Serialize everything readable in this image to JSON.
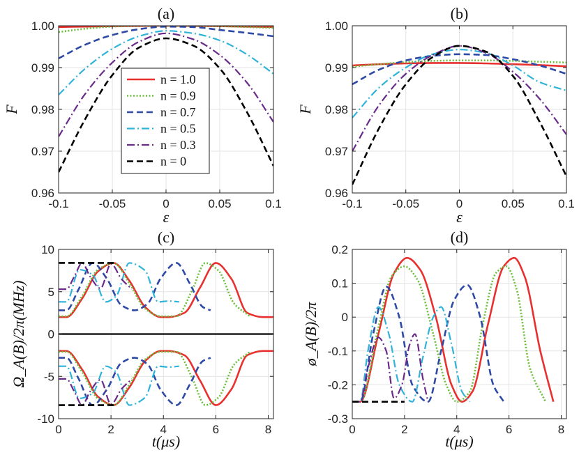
{
  "chart_data": [
    {
      "panel": "(a)",
      "type": "line",
      "xlabel": "ε",
      "ylabel": "F",
      "xlim": [
        -0.1,
        0.1
      ],
      "ylim": [
        0.96,
        1.0
      ],
      "xticks": [
        -0.1,
        -0.05,
        0,
        0.05,
        0.1
      ],
      "xtick_labels": [
        "-0.1",
        "-0.05",
        "0",
        "0.05",
        "0.1"
      ],
      "yticks": [
        0.96,
        0.97,
        0.98,
        0.99,
        1.0
      ],
      "ytick_labels": [
        "0.96",
        "0.97",
        "0.98",
        "0.99",
        "1.00"
      ],
      "grid": true,
      "legend": "center-left",
      "x": [
        -0.1,
        -0.075,
        -0.05,
        -0.025,
        0,
        0.025,
        0.05,
        0.075,
        0.1
      ],
      "series": [
        {
          "name": "n = 1.0",
          "color": "#e8302f",
          "style": "solid",
          "values": [
            0.9997,
            0.9998,
            0.9999,
            0.99995,
            1.0,
            0.99995,
            0.9999,
            0.9998,
            0.9997
          ]
        },
        {
          "name": "n = 0.9",
          "color": "#6abf3a",
          "style": "dotted",
          "values": [
            0.9985,
            0.9993,
            0.9998,
            1.0,
            1.0,
            1.0,
            0.9999,
            0.9997,
            0.9995
          ]
        },
        {
          "name": "n = 0.7",
          "color": "#2e4aa6",
          "style": "dashed",
          "values": [
            0.9922,
            0.9955,
            0.9978,
            0.9992,
            0.9998,
            0.9997,
            0.999,
            0.9983,
            0.9975
          ]
        },
        {
          "name": "n = 0.5",
          "color": "#2fb3d9",
          "style": "dashdot",
          "values": [
            0.9835,
            0.9898,
            0.9945,
            0.9975,
            0.9988,
            0.9982,
            0.9965,
            0.9932,
            0.9885
          ]
        },
        {
          "name": "n = 0.3",
          "color": "#6a2a8a",
          "style": "dashdot",
          "values": [
            0.9735,
            0.9838,
            0.9912,
            0.9962,
            0.9982,
            0.9968,
            0.993,
            0.9865,
            0.977
          ]
        },
        {
          "name": "n = 0",
          "color": "#000000",
          "style": "dashed",
          "values": [
            0.965,
            0.9778,
            0.9882,
            0.9948,
            0.997,
            0.9953,
            0.9898,
            0.9795,
            0.9665
          ]
        }
      ]
    },
    {
      "panel": "(b)",
      "type": "line",
      "xlabel": "ε",
      "ylabel": "F",
      "xlim": [
        -0.1,
        0.1
      ],
      "ylim": [
        0.96,
        1.0
      ],
      "xticks": [
        -0.1,
        -0.05,
        0,
        0.05,
        0.1
      ],
      "xtick_labels": [
        "-0.1",
        "-0.05",
        "0",
        "0.05",
        "0.1"
      ],
      "yticks": [
        0.96,
        0.97,
        0.98,
        0.99,
        1.0
      ],
      "ytick_labels": [
        "0.96",
        "0.97",
        "0.98",
        "0.99",
        "1.00"
      ],
      "grid": true,
      "x": [
        -0.1,
        -0.075,
        -0.05,
        -0.025,
        0,
        0.025,
        0.05,
        0.075,
        0.1
      ],
      "series": [
        {
          "name": "n = 1.0",
          "color": "#e8302f",
          "style": "solid",
          "values": [
            0.9905,
            0.9908,
            0.991,
            0.9911,
            0.9911,
            0.991,
            0.9908,
            0.9906,
            0.9903
          ]
        },
        {
          "name": "n = 0.9",
          "color": "#6abf3a",
          "style": "dotted",
          "values": [
            0.9902,
            0.9908,
            0.9913,
            0.9916,
            0.9917,
            0.9917,
            0.9916,
            0.9914,
            0.9912
          ]
        },
        {
          "name": "n = 0.7",
          "color": "#2e4aa6",
          "style": "dashed",
          "values": [
            0.986,
            0.9895,
            0.9917,
            0.9928,
            0.9932,
            0.993,
            0.992,
            0.9905,
            0.9885
          ]
        },
        {
          "name": "n = 0.5",
          "color": "#2fb3d9",
          "style": "dashdot",
          "values": [
            0.978,
            0.9852,
            0.99,
            0.9932,
            0.9943,
            0.9935,
            0.9905,
            0.9865,
            0.9845
          ]
        },
        {
          "name": "n = 0.3",
          "color": "#6a2a8a",
          "style": "dashdot",
          "values": [
            0.97,
            0.981,
            0.9885,
            0.993,
            0.9952,
            0.9935,
            0.989,
            0.9825,
            0.974
          ]
        },
        {
          "name": "n = 0",
          "color": "#000000",
          "style": "dashed",
          "values": [
            0.962,
            0.9755,
            0.986,
            0.9925,
            0.9952,
            0.9938,
            0.988,
            0.977,
            0.964
          ]
        }
      ]
    },
    {
      "panel": "(c)",
      "type": "line",
      "xlabel": "t(μs)",
      "ylabel": "Ω_A(B)/2π(MHz)",
      "xlim": [
        0,
        8.2
      ],
      "ylim": [
        -10,
        10
      ],
      "xticks": [
        0,
        2,
        4,
        6,
        8
      ],
      "xtick_labels": [
        "0",
        "2",
        "4",
        "6",
        "8"
      ],
      "yticks": [
        -10,
        -5,
        0,
        5,
        10
      ],
      "ytick_labels": [
        "-10",
        "-5",
        "0",
        "5",
        "10"
      ],
      "grid": true,
      "zero_line": true,
      "series": [
        {
          "name": "n = 1.0",
          "color": "#e8302f",
          "style": "solid",
          "x": [
            0,
            0.3,
            0.9,
            1.5,
            2.1,
            2.7,
            3.3,
            3.9,
            4.2,
            4.8,
            5.4,
            6.0,
            6.6,
            7.2,
            7.8,
            8.2
          ],
          "values": [
            2.0,
            2.0,
            4.2,
            7.4,
            8.4,
            6.3,
            3.2,
            2.0,
            2.0,
            2.5,
            5.5,
            8.4,
            6.5,
            2.5,
            2.0,
            2.0
          ]
        },
        {
          "name": "n = 0.9",
          "color": "#6abf3a",
          "style": "dotted",
          "x": [
            0,
            0.3,
            0.9,
            1.5,
            2.1,
            2.7,
            3.3,
            3.9,
            4.5,
            5.1,
            5.6,
            6.1,
            6.7,
            7.3
          ],
          "values": [
            2.1,
            2.1,
            4.5,
            7.6,
            8.4,
            6.0,
            3.0,
            2.1,
            2.1,
            5.2,
            8.4,
            7.5,
            3.6,
            2.1
          ]
        },
        {
          "name": "n = 0.7",
          "color": "#2e4aa6",
          "style": "dashed",
          "x": [
            0,
            0.3,
            0.75,
            1.3,
            1.85,
            2.4,
            2.9,
            3.4,
            3.9,
            4.5,
            5.0,
            5.5,
            5.8
          ],
          "values": [
            2.8,
            2.8,
            5.2,
            8.4,
            6.5,
            3.4,
            2.8,
            3.6,
            6.6,
            8.4,
            6.0,
            3.2,
            2.8
          ]
        },
        {
          "name": "n = 0.5",
          "color": "#2fb3d9",
          "style": "dashdot",
          "x": [
            0,
            0.3,
            0.8,
            1.3,
            1.8,
            2.2,
            2.7,
            3.3,
            3.8,
            4.2,
            4.6
          ],
          "values": [
            3.8,
            3.8,
            7.6,
            7.0,
            3.8,
            4.5,
            8.4,
            7.5,
            3.8,
            3.9,
            3.8
          ]
        },
        {
          "name": "n = 0.3",
          "color": "#6a2a8a",
          "style": "dashdot",
          "x": [
            0,
            0.3,
            0.6,
            0.9,
            1.2,
            1.6,
            2.0,
            2.4,
            2.8
          ],
          "values": [
            5.3,
            5.3,
            6.8,
            8.4,
            6.8,
            5.4,
            8.3,
            6.5,
            5.3
          ]
        },
        {
          "name": "n = 0",
          "color": "#000000",
          "style": "dashed",
          "x": [
            0,
            2.1
          ],
          "values": [
            8.4,
            8.4
          ]
        }
      ]
    },
    {
      "panel": "(d)",
      "type": "line",
      "xlabel": "t(μs)",
      "ylabel": "ø_A(B)/2π",
      "xlim": [
        0,
        8.2
      ],
      "ylim": [
        -0.3,
        0.2
      ],
      "xticks": [
        0,
        2,
        4,
        6,
        8
      ],
      "xtick_labels": [
        "0",
        "2",
        "4",
        "6",
        "8"
      ],
      "yticks": [
        -0.3,
        -0.2,
        -0.1,
        0,
        0.1,
        0.2
      ],
      "ytick_labels": [
        "-0.3",
        "-0.2",
        "-0.1",
        "0",
        "0.1",
        "0.2"
      ],
      "grid": true,
      "series": [
        {
          "name": "n = 1.0",
          "color": "#e8302f",
          "style": "solid",
          "x": [
            0,
            0.3,
            1.0,
            1.6,
            2.1,
            2.6,
            3.2,
            3.8,
            4.2,
            4.6,
            5.2,
            5.8,
            6.2,
            6.6,
            7.2,
            7.7
          ],
          "values": [
            -0.25,
            -0.25,
            -0.05,
            0.13,
            0.175,
            0.14,
            0.0,
            -0.2,
            -0.25,
            -0.22,
            -0.02,
            0.15,
            0.175,
            0.12,
            -0.1,
            -0.25
          ]
        },
        {
          "name": "n = 0.9",
          "color": "#6abf3a",
          "style": "dotted",
          "x": [
            0,
            0.3,
            1.0,
            1.5,
            2.0,
            2.5,
            3.1,
            3.6,
            4.0,
            4.5,
            5.0,
            5.5,
            5.9,
            6.3,
            6.8,
            7.4
          ],
          "values": [
            -0.25,
            -0.25,
            -0.03,
            0.12,
            0.15,
            0.11,
            -0.05,
            -0.2,
            -0.25,
            -0.22,
            -0.02,
            0.13,
            0.15,
            0.08,
            -0.15,
            -0.25
          ]
        },
        {
          "name": "n = 0.7",
          "color": "#2e4aa6",
          "style": "dashed",
          "x": [
            0,
            0.3,
            0.8,
            1.3,
            1.8,
            2.3,
            2.9,
            3.4,
            3.9,
            4.4,
            4.9,
            5.4,
            5.8
          ],
          "values": [
            -0.25,
            -0.25,
            -0.05,
            0.09,
            0.0,
            -0.2,
            -0.25,
            -0.1,
            0.05,
            0.095,
            0.0,
            -0.2,
            -0.25
          ]
        },
        {
          "name": "n = 0.5",
          "color": "#2fb3d9",
          "style": "dashdot",
          "x": [
            0,
            0.3,
            0.6,
            1.0,
            1.4,
            1.8,
            2.3,
            2.7,
            3.1,
            3.4,
            3.8,
            4.2,
            4.5
          ],
          "values": [
            -0.25,
            -0.25,
            -0.1,
            0.03,
            -0.05,
            -0.2,
            -0.25,
            -0.12,
            0.0,
            0.03,
            -0.08,
            -0.22,
            -0.25
          ]
        },
        {
          "name": "n = 0.3",
          "color": "#6a2a8a",
          "style": "dashdot",
          "x": [
            0,
            0.3,
            0.6,
            1.0,
            1.3,
            1.6,
            1.9,
            2.2,
            2.4,
            2.7,
            2.9
          ],
          "values": [
            -0.25,
            -0.25,
            -0.15,
            -0.06,
            -0.1,
            -0.24,
            -0.2,
            -0.08,
            -0.05,
            -0.18,
            -0.25
          ]
        },
        {
          "name": "n = 0",
          "color": "#000000",
          "style": "dashed",
          "x": [
            0,
            2.0
          ],
          "values": [
            -0.25,
            -0.25
          ]
        }
      ]
    }
  ]
}
